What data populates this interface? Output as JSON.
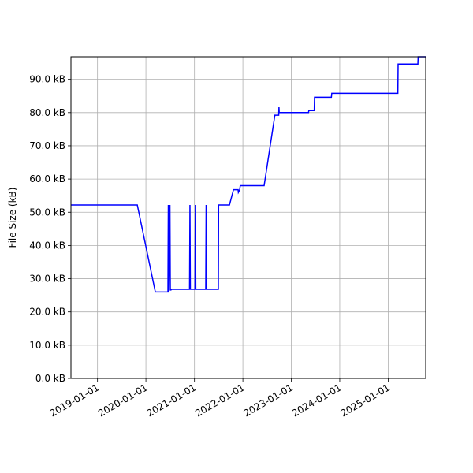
{
  "chart_data": {
    "type": "line",
    "title": "",
    "xlabel": "",
    "ylabel": "File Size (kB)",
    "x_type": "date",
    "xlim": [
      "2018-06-15",
      "2025-10-10"
    ],
    "ylim": [
      0,
      96.8
    ],
    "grid": true,
    "line_color": "#0000ff",
    "x_ticks": [
      "2019-01-01",
      "2020-01-01",
      "2021-01-01",
      "2022-01-01",
      "2023-01-01",
      "2024-01-01",
      "2025-01-01"
    ],
    "y_ticks": [
      0,
      10,
      20,
      30,
      40,
      50,
      60,
      70,
      80,
      90
    ],
    "y_tick_labels": [
      "0.0 kB",
      "10.0 kB",
      "20.0 kB",
      "30.0 kB",
      "40.0 kB",
      "50.0 kB",
      "60.0 kB",
      "70.0 kB",
      "80.0 kB",
      "90.0 kB"
    ],
    "series": [
      {
        "x": [
          "2018-06-15",
          "2019-10-28",
          "2020-03-12",
          "2020-06-15",
          "2020-06-18",
          "2020-06-20",
          "2020-06-22",
          "2020-06-30",
          "2020-07-03",
          "2020-07-08",
          "2020-07-11",
          "2020-07-14",
          "2020-11-25",
          "2020-11-28",
          "2020-12-01",
          "2021-01-05",
          "2021-01-08",
          "2021-01-11",
          "2021-03-27",
          "2021-03-30",
          "2021-04-02",
          "2021-06-30",
          "2021-07-02",
          "2021-09-22",
          "2021-10-22",
          "2021-11-26",
          "2021-11-28",
          "2021-12-08",
          "2021-12-12",
          "2021-12-14",
          "2022-06-10",
          "2022-08-30",
          "2022-09-28",
          "2022-09-30",
          "2022-10-02",
          "2022-10-04",
          "2023-05-11",
          "2023-05-13",
          "2023-06-23",
          "2023-06-25",
          "2023-07-04",
          "2023-10-30",
          "2023-11-02",
          "2024-06-01",
          "2025-03-14",
          "2025-03-16",
          "2025-08-12",
          "2025-08-14",
          "2025-10-10"
        ],
        "y": [
          52.2,
          52.2,
          26.0,
          26.0,
          52.2,
          26.0,
          26.0,
          52.2,
          26.6,
          26.6,
          26.8,
          26.8,
          26.8,
          52.2,
          26.8,
          26.8,
          52.2,
          26.8,
          26.8,
          52.2,
          26.8,
          26.8,
          52.2,
          52.2,
          56.8,
          56.8,
          56.0,
          56.8,
          58.0,
          58.0,
          58.0,
          79.2,
          79.2,
          81.6,
          80.0,
          80.0,
          80.0,
          80.6,
          80.6,
          84.6,
          84.6,
          84.6,
          85.8,
          85.8,
          85.8,
          94.6,
          94.6,
          96.8,
          96.8
        ]
      }
    ]
  }
}
